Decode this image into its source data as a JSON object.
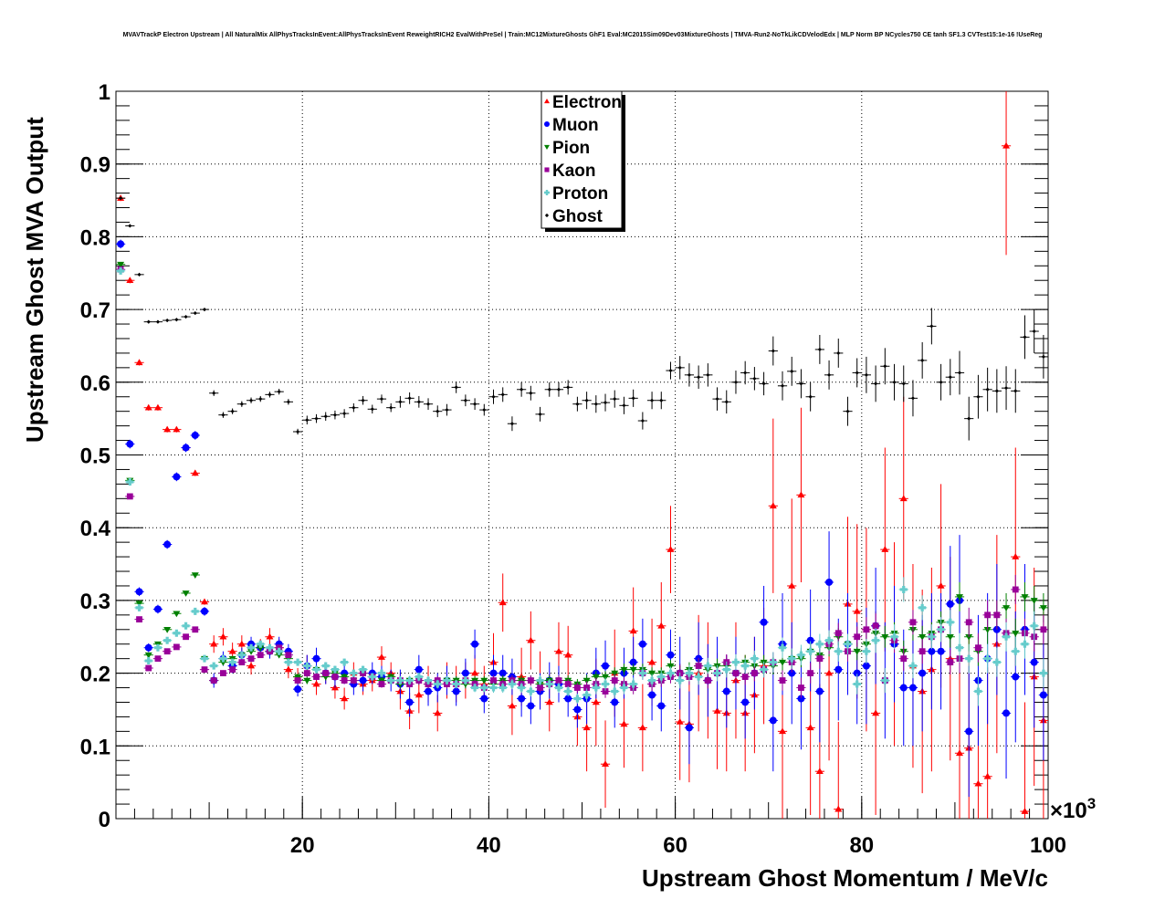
{
  "chart_data": {
    "type": "scatter",
    "title": "MVAVTrackP Electron Upstream | All NaturalMix AllPhysTracksInEvent:AllPhysTracksInEvent ReweightRICH2 EvalWithPreSel | Train:MC12MixtureGhosts GhF1 Eval:MC2015Sim09Dev03MixtureGhosts | TMVA-Run2-NoTkLikCDVelodEdx | MLP Norm BP NCycles750 CE tanh SF1.3 CVTest15:1e-16 !UseReg",
    "xlabel": "Upstream Ghost Momentum / MeV/c",
    "ylabel": "Upstream Ghost MVA Output",
    "x_multiplier_label": "×10",
    "x_multiplier_exp": "3",
    "xlim": [
      0,
      100
    ],
    "ylim": [
      0,
      1
    ],
    "x_ticks": [
      "20",
      "40",
      "60",
      "80",
      "100"
    ],
    "x_tick_values": [
      20,
      40,
      60,
      80,
      100
    ],
    "y_ticks": [
      "0",
      "0.1",
      "0.2",
      "0.3",
      "0.4",
      "0.5",
      "0.6",
      "0.7",
      "0.8",
      "0.9",
      "1"
    ],
    "y_tick_values": [
      0,
      0.1,
      0.2,
      0.3,
      0.4,
      0.5,
      0.6,
      0.7,
      0.8,
      0.9,
      1
    ],
    "grid": true,
    "legend_placement": "top-center",
    "x_first_bin_center": 0.5,
    "bin_width": 1,
    "series": [
      {
        "name": "Electron",
        "color": "#ff0000",
        "marker": "triangle-up",
        "values": [
          0.853,
          0.74,
          0.627,
          0.565,
          0.565,
          0.535,
          0.535,
          0.51,
          0.475,
          0.298,
          0.24,
          0.25,
          0.23,
          0.24,
          0.21,
          0.235,
          0.25,
          0.235,
          0.205,
          0.195,
          0.21,
          0.185,
          0.2,
          0.18,
          0.165,
          0.2,
          0.185,
          0.19,
          0.222,
          0.2,
          0.175,
          0.148,
          0.17,
          0.185,
          0.145,
          0.19,
          0.185,
          0.19,
          0.2,
          0.185,
          0.215,
          0.297,
          0.155,
          0.195,
          0.245,
          0.19,
          0.16,
          0.23,
          0.225,
          0.14,
          0.125,
          0.16,
          0.075,
          0.2,
          0.13,
          0.258,
          0.125,
          0.215,
          0.265,
          0.37,
          0.133,
          0.13,
          0.2,
          0.19,
          0.148,
          0.145,
          0.19,
          0.145,
          0.17,
          0.21,
          0.43,
          0.12,
          0.32,
          0.445,
          0.125,
          0.065,
          0.2,
          0.013,
          0.295,
          0.285,
          0.26,
          0.145,
          0.37,
          0.24,
          0.44,
          0.21,
          0.175,
          0.205,
          0.32,
          0.22,
          0.09,
          0.097,
          0.048,
          0.058,
          0.24,
          0.925,
          0.36,
          0.01,
          0.195,
          0.135
        ],
        "err_per_10_bins": [
          0.004,
          0.012,
          0.015,
          0.025,
          0.04,
          0.06,
          0.08,
          0.12,
          0.14,
          0.15
        ]
      },
      {
        "name": "Muon",
        "color": "#0000ff",
        "marker": "circle",
        "values": [
          0.79,
          0.515,
          0.312,
          0.235,
          0.288,
          0.377,
          0.47,
          0.51,
          0.527,
          0.285,
          0.19,
          0.22,
          0.21,
          0.225,
          0.24,
          0.235,
          0.23,
          0.24,
          0.23,
          0.178,
          0.21,
          0.22,
          0.2,
          0.195,
          0.2,
          0.185,
          0.19,
          0.2,
          0.195,
          0.19,
          0.185,
          0.16,
          0.205,
          0.175,
          0.18,
          0.19,
          0.175,
          0.2,
          0.24,
          0.165,
          0.2,
          0.2,
          0.195,
          0.165,
          0.155,
          0.175,
          0.19,
          0.185,
          0.165,
          0.15,
          0.165,
          0.2,
          0.21,
          0.16,
          0.2,
          0.215,
          0.24,
          0.17,
          0.155,
          0.225,
          0.2,
          0.125,
          0.22,
          0.19,
          0.2,
          0.175,
          0.2,
          0.16,
          0.2,
          0.27,
          0.135,
          0.24,
          0.2,
          0.165,
          0.245,
          0.175,
          0.325,
          0.205,
          0.24,
          0.2,
          0.21,
          0.265,
          0.19,
          0.24,
          0.18,
          0.18,
          0.2,
          0.23,
          0.23,
          0.295,
          0.3,
          0.12,
          0.19,
          0.22,
          0.26,
          0.145,
          0.195,
          0.26,
          0.215,
          0.17
        ],
        "err_per_10_bins": [
          0.006,
          0.01,
          0.015,
          0.02,
          0.025,
          0.035,
          0.05,
          0.07,
          0.08,
          0.09
        ]
      },
      {
        "name": "Pion",
        "color": "#008000",
        "marker": "triangle-down",
        "values": [
          0.762,
          0.465,
          0.296,
          0.225,
          0.24,
          0.26,
          0.282,
          0.31,
          0.335,
          0.22,
          0.19,
          0.215,
          0.22,
          0.225,
          0.23,
          0.235,
          0.23,
          0.225,
          0.22,
          0.195,
          0.19,
          0.205,
          0.195,
          0.2,
          0.195,
          0.19,
          0.2,
          0.195,
          0.19,
          0.195,
          0.185,
          0.19,
          0.19,
          0.185,
          0.185,
          0.19,
          0.19,
          0.185,
          0.19,
          0.19,
          0.185,
          0.19,
          0.19,
          0.19,
          0.19,
          0.185,
          0.19,
          0.19,
          0.19,
          0.185,
          0.19,
          0.195,
          0.195,
          0.2,
          0.205,
          0.205,
          0.205,
          0.2,
          0.2,
          0.21,
          0.2,
          0.205,
          0.21,
          0.205,
          0.21,
          0.21,
          0.2,
          0.215,
          0.21,
          0.215,
          0.21,
          0.215,
          0.22,
          0.22,
          0.23,
          0.225,
          0.235,
          0.25,
          0.24,
          0.23,
          0.24,
          0.255,
          0.25,
          0.255,
          0.23,
          0.26,
          0.25,
          0.255,
          0.27,
          0.25,
          0.305,
          0.25,
          0.23,
          0.26,
          0.28,
          0.29,
          0.255,
          0.305,
          0.3,
          0.29
        ],
        "err_per_10_bins": [
          0.003,
          0.004,
          0.005,
          0.006,
          0.007,
          0.008,
          0.01,
          0.012,
          0.015,
          0.02
        ]
      },
      {
        "name": "Kaon",
        "color": "#990099",
        "marker": "square",
        "values": [
          0.755,
          0.443,
          0.274,
          0.207,
          0.22,
          0.23,
          0.236,
          0.25,
          0.26,
          0.205,
          0.19,
          0.2,
          0.205,
          0.215,
          0.22,
          0.225,
          0.23,
          0.235,
          0.225,
          0.19,
          0.2,
          0.195,
          0.2,
          0.195,
          0.19,
          0.19,
          0.2,
          0.195,
          0.185,
          0.19,
          0.19,
          0.185,
          0.19,
          0.185,
          0.19,
          0.185,
          0.185,
          0.19,
          0.185,
          0.18,
          0.19,
          0.185,
          0.19,
          0.185,
          0.19,
          0.18,
          0.185,
          0.19,
          0.185,
          0.18,
          0.18,
          0.185,
          0.175,
          0.19,
          0.185,
          0.18,
          0.2,
          0.185,
          0.19,
          0.195,
          0.2,
          0.195,
          0.21,
          0.19,
          0.2,
          0.215,
          0.2,
          0.195,
          0.2,
          0.205,
          0.215,
          0.19,
          0.215,
          0.18,
          0.2,
          0.22,
          0.24,
          0.255,
          0.23,
          0.25,
          0.26,
          0.265,
          0.19,
          0.245,
          0.22,
          0.27,
          0.23,
          0.25,
          0.26,
          0.215,
          0.22,
          0.27,
          0.235,
          0.28,
          0.28,
          0.255,
          0.315,
          0.255,
          0.25,
          0.26
        ],
        "err_per_10_bins": [
          0.003,
          0.004,
          0.005,
          0.006,
          0.007,
          0.009,
          0.011,
          0.014,
          0.017,
          0.02
        ]
      },
      {
        "name": "Proton",
        "color": "#66cccc",
        "marker": "cross",
        "values": [
          0.753,
          0.463,
          0.29,
          0.217,
          0.235,
          0.245,
          0.255,
          0.265,
          0.285,
          0.22,
          0.21,
          0.22,
          0.215,
          0.225,
          0.235,
          0.24,
          0.235,
          0.23,
          0.215,
          0.215,
          0.21,
          0.205,
          0.21,
          0.205,
          0.215,
          0.2,
          0.205,
          0.195,
          0.2,
          0.19,
          0.19,
          0.19,
          0.195,
          0.19,
          0.185,
          0.19,
          0.185,
          0.19,
          0.18,
          0.18,
          0.18,
          0.18,
          0.185,
          0.18,
          0.175,
          0.19,
          0.185,
          0.18,
          0.175,
          0.165,
          0.17,
          0.18,
          0.185,
          0.175,
          0.18,
          0.185,
          0.2,
          0.19,
          0.195,
          0.2,
          0.19,
          0.2,
          0.195,
          0.21,
          0.2,
          0.205,
          0.215,
          0.21,
          0.22,
          0.205,
          0.215,
          0.235,
          0.22,
          0.225,
          0.23,
          0.24,
          0.245,
          0.23,
          0.24,
          0.185,
          0.23,
          0.245,
          0.19,
          0.25,
          0.315,
          0.21,
          0.29,
          0.25,
          0.26,
          0.27,
          0.235,
          0.22,
          0.175,
          0.22,
          0.215,
          0.25,
          0.23,
          0.24,
          0.265,
          0.2
        ],
        "err_per_10_bins": [
          0.003,
          0.004,
          0.005,
          0.006,
          0.007,
          0.009,
          0.011,
          0.014,
          0.017,
          0.02
        ]
      },
      {
        "name": "Ghost",
        "color": "#000000",
        "marker": "plus",
        "values": [
          0.853,
          0.815,
          0.748,
          0.683,
          0.683,
          0.685,
          0.686,
          0.69,
          0.695,
          0.7,
          0.585,
          0.555,
          0.56,
          0.57,
          0.575,
          0.577,
          0.583,
          0.587,
          0.573,
          0.532,
          0.548,
          0.55,
          0.553,
          0.555,
          0.557,
          0.565,
          0.575,
          0.563,
          0.577,
          0.565,
          0.573,
          0.578,
          0.573,
          0.57,
          0.56,
          0.562,
          0.593,
          0.575,
          0.57,
          0.562,
          0.58,
          0.583,
          0.543,
          0.59,
          0.585,
          0.556,
          0.59,
          0.59,
          0.593,
          0.57,
          0.575,
          0.57,
          0.572,
          0.577,
          0.568,
          0.578,
          0.547,
          0.575,
          0.575,
          0.616,
          0.62,
          0.61,
          0.607,
          0.61,
          0.577,
          0.573,
          0.6,
          0.613,
          0.605,
          0.598,
          0.643,
          0.595,
          0.615,
          0.598,
          0.58,
          0.645,
          0.61,
          0.64,
          0.56,
          0.613,
          0.61,
          0.598,
          0.622,
          0.6,
          0.598,
          0.578,
          0.63,
          0.677,
          0.6,
          0.607,
          0.613,
          0.55,
          0.58,
          0.59,
          0.588,
          0.592,
          0.588,
          0.662,
          0.67,
          0.635
        ],
        "err_per_10_bins": [
          0.002,
          0.004,
          0.006,
          0.008,
          0.01,
          0.012,
          0.016,
          0.02,
          0.025,
          0.03
        ]
      }
    ]
  }
}
